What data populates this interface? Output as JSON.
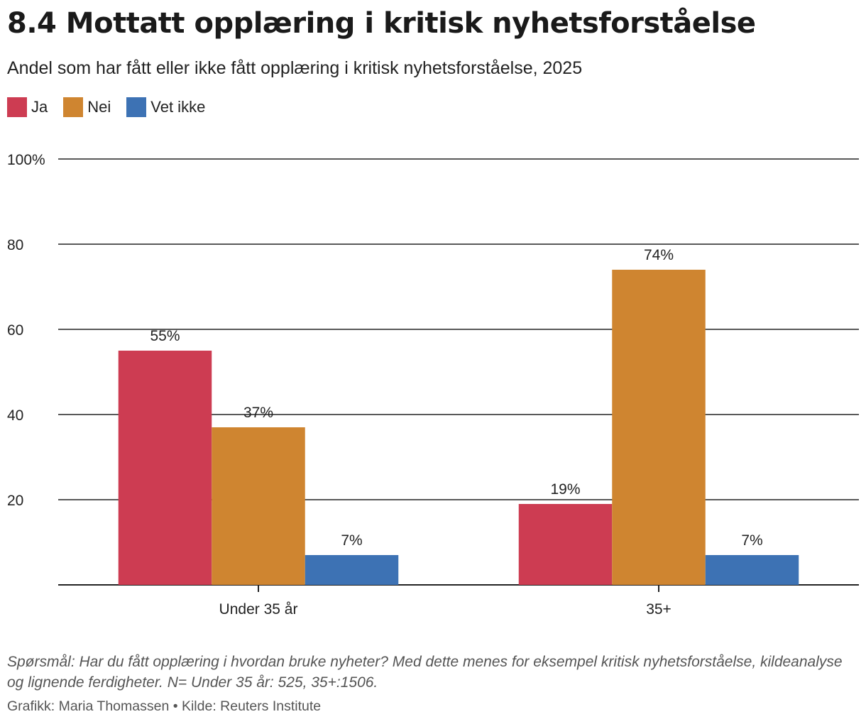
{
  "title": "8.4 Mottatt opplæring i kritisk nyhetsforståelse",
  "subtitle": "Andel som har fått eller ikke fått opplæring i kritisk nyhetsforståelse, 2025",
  "footnote": "Spørsmål: Har du fått opplæring i hvordan bruke nyheter? Med dette menes for eksempel kritisk nyhetsforståelse, kildeanalyse og lignende ferdigheter. N= Under 35 år: 525, 35+:1506.",
  "credit": "Grafikk: Maria Thomassen • Kilde: Reuters Institute",
  "chart_data": {
    "type": "bar",
    "categories": [
      "Under 35 år",
      "35+"
    ],
    "series": [
      {
        "name": "Ja",
        "color": "#cd3c52",
        "values": [
          55,
          19
        ]
      },
      {
        "name": "Nei",
        "color": "#cf8530",
        "values": [
          37,
          74
        ]
      },
      {
        "name": "Vet ikke",
        "color": "#3d72b4",
        "values": [
          7,
          7
        ]
      }
    ],
    "ylim": [
      0,
      100
    ],
    "yticks": [
      {
        "value": 20,
        "label": "20"
      },
      {
        "value": 40,
        "label": "40"
      },
      {
        "value": 60,
        "label": "60"
      },
      {
        "value": 80,
        "label": "80"
      },
      {
        "value": 100,
        "label": "100%"
      }
    ],
    "value_suffix": "%",
    "grid": true,
    "legend_position": "top-left"
  }
}
